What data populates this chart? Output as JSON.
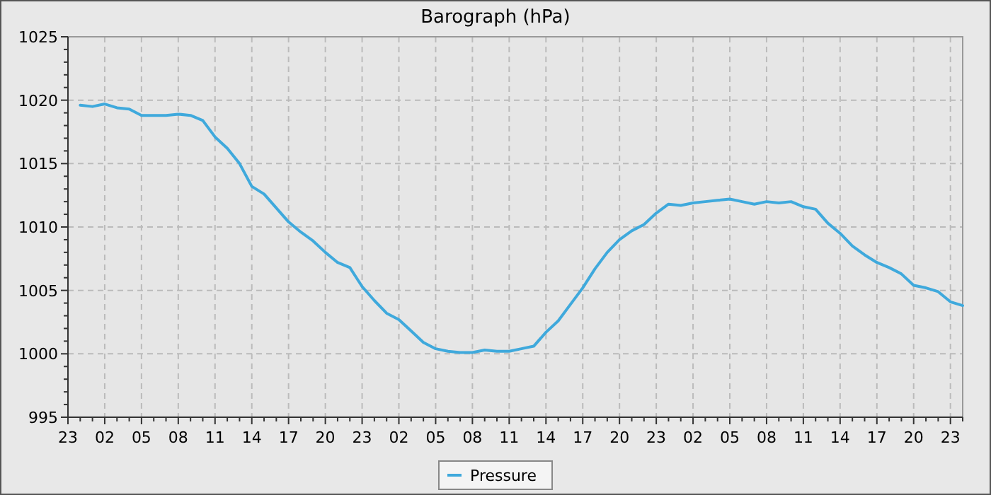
{
  "chart_data": {
    "type": "line",
    "title": "Barograph (hPa)",
    "categories": [
      "23",
      null,
      null,
      "02",
      null,
      null,
      "05",
      null,
      null,
      "08",
      null,
      null,
      "11",
      null,
      null,
      "14",
      null,
      null,
      "17",
      null,
      null,
      "20",
      null,
      null,
      "23",
      null,
      null,
      "02",
      null,
      null,
      "05",
      null,
      null,
      "08",
      null,
      null,
      "11",
      null,
      null,
      "14",
      null,
      null,
      "17",
      null,
      null,
      "20",
      null,
      null,
      "23",
      null,
      null,
      "02",
      null,
      null,
      "05",
      null,
      null,
      "08",
      null,
      null,
      "11",
      null,
      null,
      "14",
      null,
      null,
      "17",
      null,
      null,
      "20",
      null,
      null,
      "23",
      null
    ],
    "series": [
      {
        "name": "Pressure",
        "color": "#3fa9dc",
        "values": [
          null,
          1019.6,
          1019.5,
          1019.7,
          1019.4,
          1019.3,
          1018.8,
          1018.8,
          1018.8,
          1018.9,
          1018.8,
          1018.4,
          1017.1,
          1016.2,
          1015.0,
          1013.2,
          1012.6,
          1011.5,
          1010.4,
          1009.6,
          1008.9,
          1008.0,
          1007.2,
          1006.8,
          1005.3,
          1004.2,
          1003.2,
          1002.7,
          1001.8,
          1000.9,
          1000.4,
          1000.2,
          1000.1,
          1000.1,
          1000.3,
          1000.2,
          1000.2,
          1000.4,
          1000.6,
          1001.7,
          1002.6,
          1003.9,
          1005.2,
          1006.7,
          1008.0,
          1009.0,
          1009.7,
          1010.2,
          1011.1,
          1011.8,
          1011.7,
          1011.9,
          1012.0,
          1012.1,
          1012.2,
          1012.0,
          1011.8,
          1012.0,
          1011.9,
          1012.0,
          1011.6,
          1011.4,
          1010.3,
          1009.5,
          1008.5,
          1007.8,
          1007.2,
          1006.8,
          1006.3,
          1005.4,
          1005.2,
          1004.9,
          1004.1,
          1003.8
        ]
      }
    ],
    "ylim": [
      995,
      1025
    ],
    "yticks": [
      995,
      {
        "value": 996,
        "label": null
      },
      {
        "value": 997,
        "label": null
      },
      {
        "value": 998,
        "label": null
      },
      {
        "value": 999,
        "label": null
      },
      1000,
      {
        "value": 1001,
        "label": null
      },
      {
        "value": 1002,
        "label": null
      },
      {
        "value": 1003,
        "label": null
      },
      {
        "value": 1004,
        "label": null
      },
      1005,
      {
        "value": 1006,
        "label": null
      },
      {
        "value": 1007,
        "label": null
      },
      {
        "value": 1008,
        "label": null
      },
      {
        "value": 1009,
        "label": null
      },
      1010,
      {
        "value": 1011,
        "label": null
      },
      {
        "value": 1012,
        "label": null
      },
      {
        "value": 1013,
        "label": null
      },
      {
        "value": 1014,
        "label": null
      },
      1015,
      {
        "value": 1016,
        "label": null
      },
      {
        "value": 1017,
        "label": null
      },
      {
        "value": 1018,
        "label": null
      },
      {
        "value": 1019,
        "label": null
      },
      1020,
      {
        "value": 1021,
        "label": null
      },
      {
        "value": 1022,
        "label": null
      },
      {
        "value": 1023,
        "label": null
      },
      {
        "value": 1024,
        "label": null
      },
      1025
    ],
    "grid": true,
    "legend": "bottom",
    "marker": "none",
    "line_style": "solid"
  }
}
